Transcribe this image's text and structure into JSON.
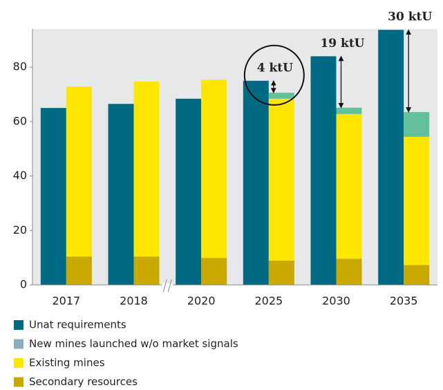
{
  "chart_data": {
    "type": "stacked_bar_pair",
    "categories": [
      "2017",
      "2018",
      "2020",
      "2025",
      "2030",
      "2035"
    ],
    "series": [
      {
        "name": "Unat requirements",
        "color": "#006a85",
        "values": [
          65,
          66.5,
          68.4,
          75,
          84,
          93.7
        ]
      },
      {
        "name": "New mines launched w/o market signals",
        "color": "#63c09b",
        "legend_color": "#8aafc0",
        "values": [
          null,
          null,
          null,
          2.2,
          2.3,
          9.1
        ],
        "stack": true
      },
      {
        "name": "Existing mines",
        "color": "#ffe600",
        "values": [
          62.5,
          64.3,
          65.5,
          59.5,
          53.2,
          47.1
        ],
        "stack": true
      },
      {
        "name": "Secondary resources",
        "color": "#c9a800",
        "values": [
          10.4,
          10.4,
          9.9,
          8.9,
          9.6,
          7.3
        ],
        "stack": true
      }
    ],
    "annotations": [
      {
        "text": "4 ktU",
        "category": "2025"
      },
      {
        "text": "19 ktU",
        "category": "2030"
      },
      {
        "text": "30 ktU",
        "category": "2035"
      }
    ],
    "ylim": [
      0,
      94
    ],
    "yticks": [
      0,
      20,
      40,
      60,
      80
    ],
    "grid": false
  }
}
